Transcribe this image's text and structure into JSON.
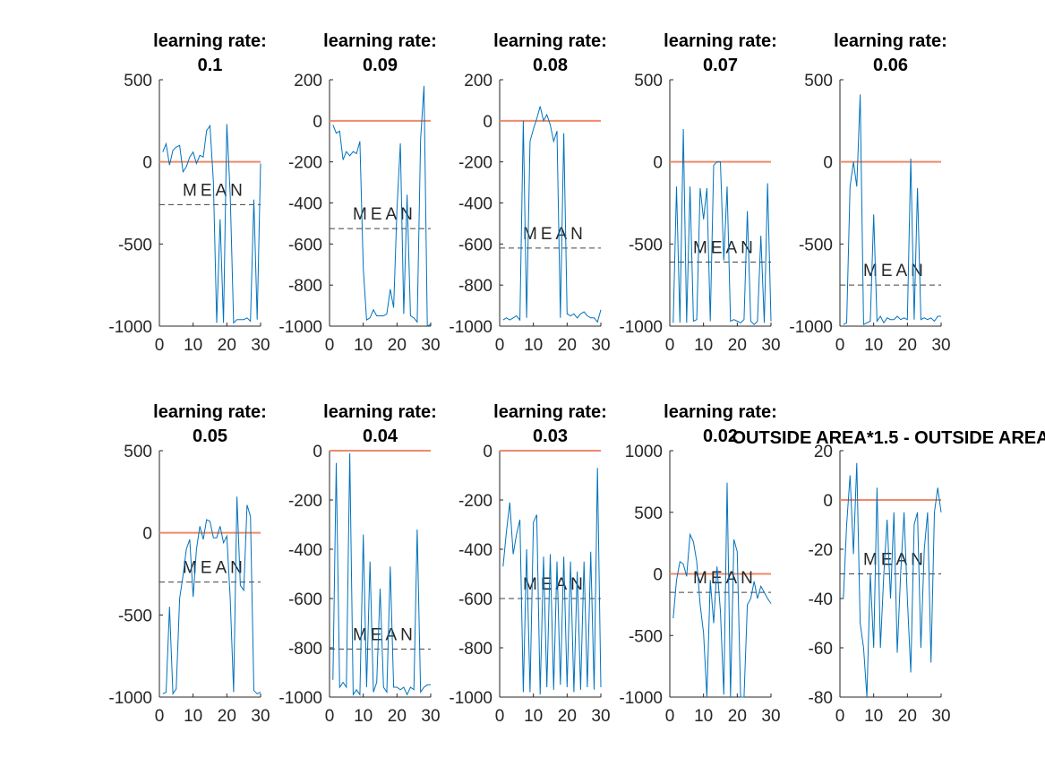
{
  "colors": {
    "series": "#0072BD",
    "zero_line": "#EE8A6A",
    "mean_line": "#404040",
    "axis": "#262626"
  },
  "chart_data": [
    {
      "type": "line",
      "title": [
        "learning rate:",
        "0.1"
      ],
      "xlim": [
        0,
        30
      ],
      "ylim": [
        -1000,
        500
      ],
      "xticks": [
        0,
        10,
        20,
        30
      ],
      "yticks": [
        500,
        0,
        -500,
        -1000
      ],
      "mean": -260,
      "mean_label": "MEAN",
      "reference": 0,
      "y": [
        60,
        110,
        -20,
        70,
        90,
        100,
        -60,
        -30,
        30,
        60,
        -10,
        40,
        30,
        190,
        220,
        -120,
        -980,
        -350,
        -980,
        230,
        -200,
        -980,
        -960,
        -960,
        -960,
        -950,
        -970,
        -230,
        -960,
        -10
      ]
    },
    {
      "type": "line",
      "title": [
        "learning rate:",
        "0.09"
      ],
      "xlim": [
        0,
        30
      ],
      "ylim": [
        -1000,
        200
      ],
      "xticks": [
        0,
        10,
        20,
        30
      ],
      "yticks": [
        200,
        0,
        -200,
        -400,
        -600,
        -800,
        -1000
      ],
      "mean": -525,
      "mean_label": "MEAN",
      "reference": 0,
      "y": [
        -20,
        -60,
        -50,
        -190,
        -150,
        -170,
        -150,
        -160,
        -100,
        -720,
        -970,
        -960,
        -920,
        -950,
        -950,
        -950,
        -940,
        -820,
        -910,
        -430,
        -110,
        -940,
        -360,
        -950,
        -960,
        -980,
        -90,
        170,
        -1000,
        -990
      ]
    },
    {
      "type": "line",
      "title": [
        "learning rate:",
        "0.08"
      ],
      "xlim": [
        0,
        30
      ],
      "ylim": [
        -1000,
        200
      ],
      "xticks": [
        0,
        10,
        20,
        30
      ],
      "yticks": [
        200,
        0,
        -200,
        -400,
        -600,
        -800,
        -1000
      ],
      "mean": -620,
      "mean_label": "MEAN",
      "reference": 0,
      "y": [
        -970,
        -960,
        -970,
        -960,
        -950,
        -970,
        0,
        -960,
        -100,
        -40,
        10,
        70,
        0,
        30,
        -20,
        -100,
        -50,
        -960,
        -60,
        -940,
        -950,
        -940,
        -960,
        -940,
        -930,
        -950,
        -960,
        -960,
        -980,
        -920
      ]
    },
    {
      "type": "line",
      "title": [
        "learning rate:",
        "0.07"
      ],
      "xlim": [
        0,
        30
      ],
      "ylim": [
        -1000,
        500
      ],
      "xticks": [
        0,
        10,
        20,
        30
      ],
      "yticks": [
        500,
        0,
        -500,
        -1000
      ],
      "mean": -610,
      "mean_label": "MEAN",
      "reference": 0,
      "y": [
        -980,
        -150,
        -980,
        200,
        -980,
        -150,
        -970,
        -960,
        -160,
        -350,
        -160,
        -970,
        -20,
        0,
        0,
        -600,
        -150,
        -970,
        -960,
        -970,
        -980,
        -960,
        -300,
        -970,
        -990,
        -970,
        -450,
        -980,
        -130,
        -970
      ]
    },
    {
      "type": "line",
      "title": [
        "learning rate:",
        "0.06"
      ],
      "xlim": [
        0,
        30
      ],
      "ylim": [
        -1000,
        500
      ],
      "xticks": [
        0,
        10,
        20,
        30
      ],
      "yticks": [
        500,
        0,
        -500,
        -1000
      ],
      "mean": -750,
      "mean_label": "MEAN",
      "reference": 0,
      "y": [
        -990,
        -980,
        -150,
        0,
        -150,
        410,
        -990,
        -980,
        -970,
        -320,
        -970,
        -940,
        -980,
        -950,
        -960,
        -960,
        -940,
        -960,
        -950,
        -960,
        20,
        -960,
        -160,
        -960,
        -950,
        -960,
        -950,
        -970,
        -940,
        -940
      ]
    },
    {
      "type": "line",
      "title": [
        "learning rate:",
        "0.05"
      ],
      "xlim": [
        0,
        30
      ],
      "ylim": [
        -1000,
        500
      ],
      "xticks": [
        0,
        10,
        20,
        30
      ],
      "yticks": [
        500,
        0,
        -500,
        -1000
      ],
      "mean": -300,
      "mean_label": "MEAN",
      "reference": 0,
      "y": [
        -980,
        -970,
        -450,
        -980,
        -950,
        -400,
        -260,
        -100,
        -40,
        -390,
        -100,
        40,
        -40,
        80,
        70,
        -30,
        -30,
        40,
        -60,
        -20,
        -400,
        -970,
        220,
        -320,
        -350,
        170,
        100,
        -960,
        -980,
        -970
      ]
    },
    {
      "type": "line",
      "title": [
        "learning rate:",
        "0.04"
      ],
      "xlim": [
        0,
        30
      ],
      "ylim": [
        -1000,
        0
      ],
      "xticks": [
        0,
        10,
        20,
        30
      ],
      "yticks": [
        0,
        -200,
        -400,
        -600,
        -800,
        -1000
      ],
      "mean": -805,
      "mean_label": "MEAN",
      "reference": 0,
      "y": [
        -930,
        -50,
        -960,
        -940,
        -960,
        -10,
        -990,
        -970,
        -990,
        -340,
        -960,
        -450,
        -980,
        -940,
        -560,
        -960,
        -980,
        -470,
        -960,
        -960,
        -970,
        -960,
        -990,
        -960,
        -970,
        -320,
        -980,
        -960,
        -950,
        -950
      ]
    },
    {
      "type": "line",
      "title": [
        "learning rate:",
        "0.03"
      ],
      "xlim": [
        0,
        30
      ],
      "ylim": [
        -1000,
        0
      ],
      "xticks": [
        0,
        10,
        20,
        30
      ],
      "yticks": [
        0,
        -200,
        -400,
        -600,
        -800,
        -1000
      ],
      "mean": -600,
      "mean_label": "MEAN",
      "reference": 0,
      "y": [
        -470,
        -330,
        -210,
        -420,
        -340,
        -280,
        -980,
        -400,
        -980,
        -290,
        -260,
        -990,
        -430,
        -960,
        -420,
        -970,
        -450,
        -950,
        -430,
        -960,
        -450,
        -980,
        -490,
        -970,
        -450,
        -960,
        -410,
        -970,
        -70,
        -960
      ]
    },
    {
      "type": "line",
      "title": [
        "learning rate:",
        "0.02"
      ],
      "xlim": [
        0,
        30
      ],
      "ylim": [
        -1000,
        1000
      ],
      "xticks": [
        0,
        10,
        20,
        30
      ],
      "yticks": [
        1000,
        500,
        0,
        -500,
        -1000
      ],
      "mean": -150,
      "mean_label": "MEAN",
      "reference": 0,
      "y": [
        -360,
        -50,
        100,
        80,
        -20,
        320,
        260,
        100,
        -250,
        -480,
        -1000,
        -50,
        -400,
        60,
        -300,
        -980,
        740,
        -1000,
        280,
        180,
        -1000,
        -1000,
        -250,
        -200,
        -60,
        -200,
        -100,
        -150,
        -200,
        -240
      ]
    },
    {
      "type": "line",
      "title": [
        "OUTSIDE AREA*1.5 - OUTSIDE AREA"
      ],
      "xlim": [
        0,
        30
      ],
      "ylim": [
        -80,
        20
      ],
      "xticks": [
        0,
        10,
        20,
        30
      ],
      "yticks": [
        20,
        0,
        -20,
        -40,
        -60,
        -80
      ],
      "mean": -30,
      "mean_label": "MEAN",
      "reference": 0,
      "y": [
        -40,
        -10,
        10,
        -22,
        15,
        -50,
        -60,
        -80,
        -30,
        -60,
        5,
        -60,
        -30,
        -8,
        -40,
        -5,
        -62,
        -30,
        -5,
        -40,
        -70,
        -10,
        -5,
        -60,
        -20,
        -5,
        -66,
        -5,
        5,
        -5
      ]
    }
  ]
}
